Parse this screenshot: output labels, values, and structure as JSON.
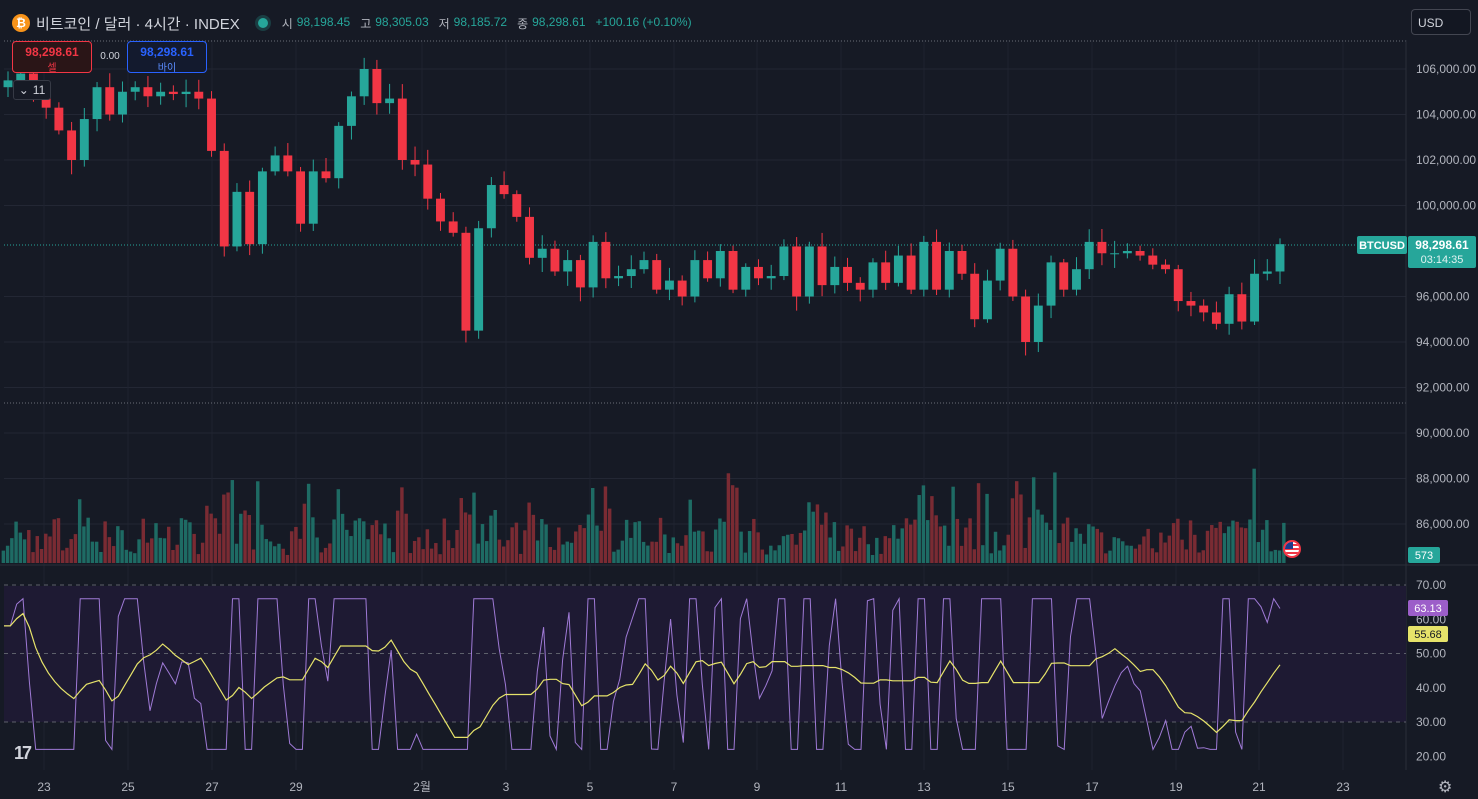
{
  "header": {
    "coin_icon": "₿",
    "title": "비트코인 / 달러 · 4시간 · INDEX",
    "open_label": "시",
    "open": "98,198.45",
    "high_label": "고",
    "high": "98,305.03",
    "low_label": "저",
    "low": "98,185.72",
    "close_label": "종",
    "close": "98,298.61",
    "change": "+100.16 (+0.10%)"
  },
  "currency_select": "USD",
  "trade": {
    "sell_price": "98,298.61",
    "sell_label": "셀",
    "spread": "0.00",
    "buy_price": "98,298.61",
    "buy_label": "바이"
  },
  "indicator_toggle": {
    "icon": "chevron-down-icon",
    "count": "11"
  },
  "price_axis": [
    "106,000.00",
    "104,000.00",
    "102,000.00",
    "100,000.00",
    "96,000.00",
    "94,000.00",
    "92,000.00",
    "90,000.00",
    "88,000.00",
    "86,000.00"
  ],
  "symbol_tag": {
    "label": "BTCUSD",
    "price": "98,298.61",
    "countdown": "03:14:35"
  },
  "volume_tag": "573",
  "rsi_axis": [
    "70.00",
    "60.00",
    "50.00",
    "40.00",
    "30.00",
    "20.00"
  ],
  "rsi_tags": {
    "rsi": "63.13",
    "ma": "55.68"
  },
  "time_axis": [
    "23",
    "25",
    "27",
    "29",
    "2월",
    "3",
    "5",
    "7",
    "9",
    "11",
    "13",
    "15",
    "17",
    "19",
    "21",
    "23"
  ],
  "colors": {
    "background": "#161a25",
    "up": "#26a69a",
    "down": "#f23645",
    "rsi_line": "#9f7ad6",
    "rsi_ma": "#e6e36a",
    "rsi_tag": "#9c5ec9"
  },
  "chart_data": {
    "type": "candlestick",
    "symbol": "BTCUSD",
    "interval": "4h",
    "last_price": 98298.61,
    "price_range": [
      91000,
      107500
    ],
    "close_series": [
      105500,
      105800,
      105100,
      104300,
      103300,
      102000,
      103800,
      105200,
      104000,
      105000,
      105200,
      104800,
      105000,
      104900,
      105000,
      104700,
      102400,
      98200,
      100600,
      98300,
      101500,
      102200,
      101500,
      99200,
      101500,
      101200,
      103500,
      104800,
      106000,
      104500,
      104700,
      102000,
      101800,
      100300,
      99300,
      98800,
      94500,
      99000,
      100900,
      100500,
      99500,
      97700,
      98100,
      97100,
      97600,
      96400,
      98400,
      96800,
      96900,
      97200,
      97600,
      96300,
      96700,
      96000,
      97600,
      96800,
      98000,
      96300,
      97300,
      96800,
      96900,
      98200,
      96000,
      98200,
      96500,
      97300,
      96600,
      96300,
      97500,
      96600,
      97800,
      96300,
      98400,
      96300,
      98000,
      97000,
      95000,
      96700,
      98100,
      96000,
      94000,
      95600,
      97500,
      96300,
      97200,
      98400,
      97900,
      97900,
      98000,
      97800,
      97400,
      97200,
      95800,
      95600,
      95300,
      94800,
      96100,
      94900,
      97000,
      97100,
      98300
    ]
  }
}
